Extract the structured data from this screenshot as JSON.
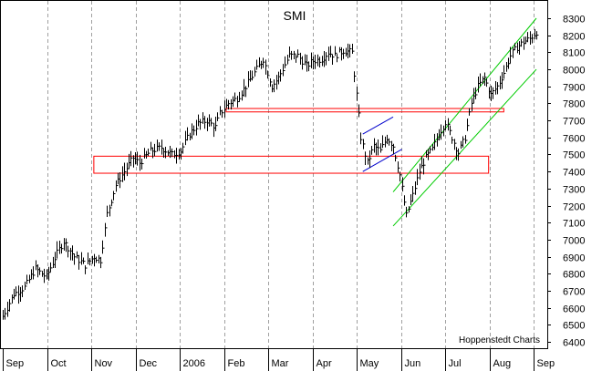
{
  "chart_data": {
    "type": "ohlc",
    "title": "SMI",
    "credit": "Hoppenstedt Charts",
    "ylim": [
      6400,
      8300
    ],
    "y_ticks": [
      6400,
      6500,
      6600,
      6700,
      6800,
      6900,
      7000,
      7100,
      7200,
      7300,
      7400,
      7500,
      7600,
      7700,
      7800,
      7900,
      8000,
      8100,
      8200,
      8300
    ],
    "y_axis_side": "right",
    "x_month_labels": [
      "Sep",
      "Oct",
      "Nov",
      "Dec",
      "2006",
      "Feb",
      "Mar",
      "Apr",
      "May",
      "Jun",
      "Jul",
      "Aug",
      "Sep"
    ],
    "grid": "vertical-dashed",
    "series_color": "#000000",
    "annotation_colors": {
      "boxes": "#ff0000",
      "channel": "#00cc00",
      "flag": "#0000cc"
    },
    "price_path": [
      [
        0,
        6550
      ],
      [
        5,
        6680
      ],
      [
        10,
        6720
      ],
      [
        15,
        6830
      ],
      [
        20,
        6780
      ],
      [
        25,
        6920
      ],
      [
        28,
        6990
      ],
      [
        33,
        6900
      ],
      [
        38,
        6850
      ],
      [
        42,
        6900
      ],
      [
        45,
        6880
      ],
      [
        48,
        7150
      ],
      [
        52,
        7320
      ],
      [
        56,
        7400
      ],
      [
        60,
        7480
      ],
      [
        63,
        7450
      ],
      [
        68,
        7520
      ],
      [
        73,
        7540
      ],
      [
        78,
        7500
      ],
      [
        82,
        7520
      ],
      [
        86,
        7620
      ],
      [
        90,
        7680
      ],
      [
        94,
        7700
      ],
      [
        98,
        7660
      ],
      [
        100,
        7740
      ],
      [
        104,
        7800
      ],
      [
        108,
        7830
      ],
      [
        112,
        7900
      ],
      [
        116,
        7980
      ],
      [
        120,
        8060
      ],
      [
        124,
        7900
      ],
      [
        127,
        7950
      ],
      [
        132,
        8080
      ],
      [
        136,
        8080
      ],
      [
        140,
        8020
      ],
      [
        143,
        8050
      ],
      [
        147,
        8060
      ],
      [
        150,
        8100
      ],
      [
        153,
        8080
      ],
      [
        157,
        8110
      ],
      [
        161,
        8100
      ],
      [
        163,
        7850
      ],
      [
        165,
        7600
      ],
      [
        168,
        7450
      ],
      [
        171,
        7550
      ],
      [
        174,
        7520
      ],
      [
        177,
        7600
      ],
      [
        180,
        7550
      ],
      [
        183,
        7380
      ],
      [
        186,
        7140
      ],
      [
        189,
        7260
      ],
      [
        192,
        7400
      ],
      [
        195,
        7480
      ],
      [
        198,
        7530
      ],
      [
        201,
        7620
      ],
      [
        204,
        7690
      ],
      [
        207,
        7600
      ],
      [
        210,
        7510
      ],
      [
        213,
        7600
      ],
      [
        216,
        7800
      ],
      [
        219,
        7900
      ],
      [
        222,
        7950
      ],
      [
        225,
        7850
      ],
      [
        228,
        7900
      ],
      [
        231,
        7980
      ],
      [
        234,
        8080
      ],
      [
        237,
        8130
      ],
      [
        240,
        8160
      ],
      [
        243,
        8180
      ],
      [
        246,
        8220
      ]
    ],
    "annotations": {
      "box_upper": {
        "x": [
          103,
          231
        ],
        "y": [
          7750,
          7770
        ]
      },
      "box_lower": {
        "x": [
          42,
          224
        ],
        "y": [
          7390,
          7490
        ]
      },
      "flag": [
        {
          "from": [
            166,
            7400
          ],
          "to": [
            184,
            7530
          ]
        },
        {
          "from": [
            166,
            7620
          ],
          "to": [
            180,
            7720
          ]
        }
      ],
      "channel": [
        {
          "from": [
            180,
            7080
          ],
          "to": [
            246,
            8000
          ]
        },
        {
          "from": [
            180,
            7280
          ],
          "to": [
            246,
            8300
          ]
        }
      ]
    }
  }
}
